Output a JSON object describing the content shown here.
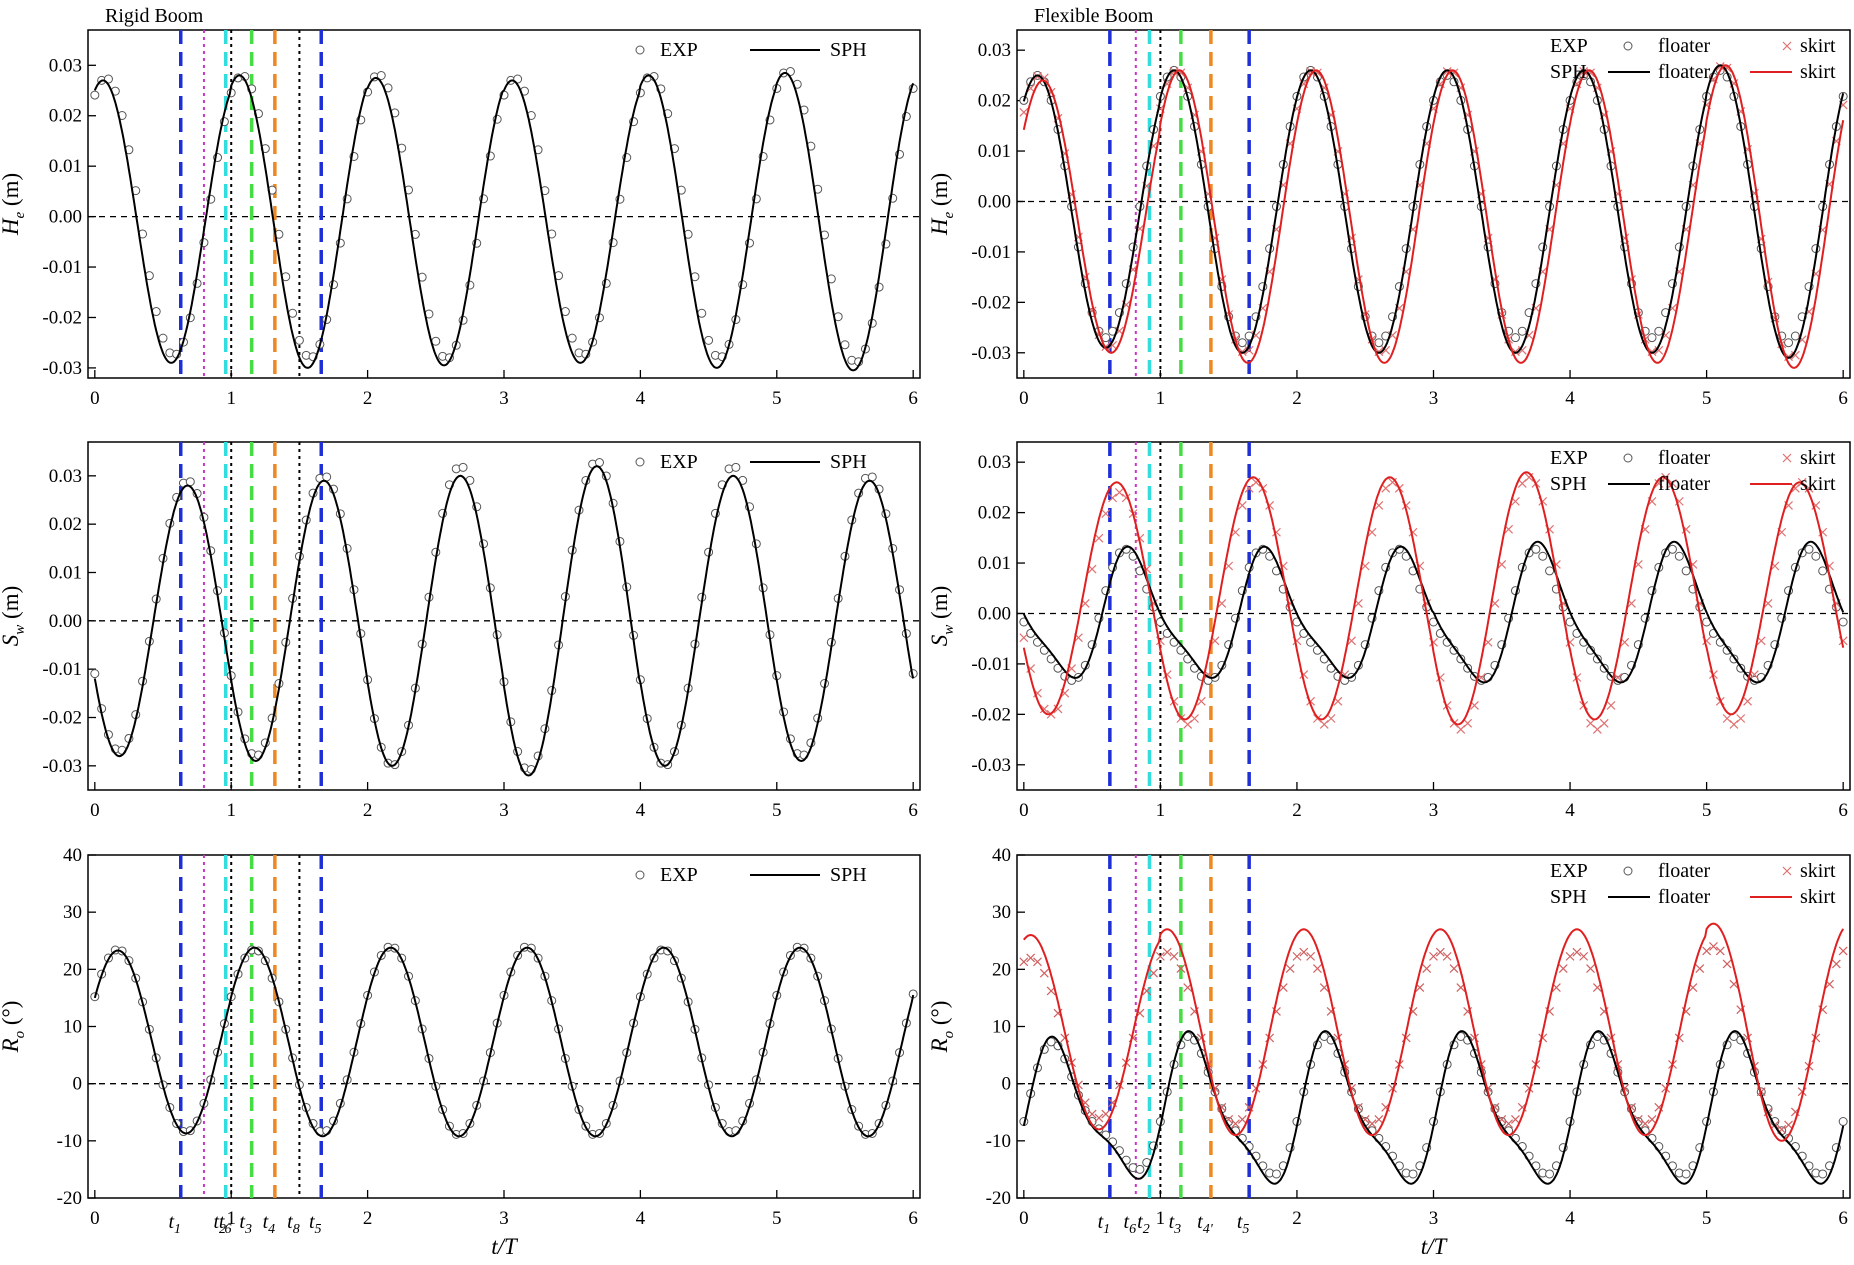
{
  "chart_data": [
    {
      "type": "line",
      "panel": "rigid-he",
      "column_title": "Rigid Boom",
      "ylabel": "He (m)",
      "ylabel_main": "H",
      "ylabel_sub": "e",
      "ylabel_unit": " (m)",
      "xlabel": "",
      "xlim": [
        -0.05,
        6.05
      ],
      "ylim": [
        -0.032,
        0.037
      ],
      "xticks": [
        0,
        1,
        2,
        3,
        4,
        5,
        6
      ],
      "yticks": [
        -0.03,
        -0.02,
        -0.01,
        0.0,
        0.01,
        0.02,
        0.03
      ],
      "ytick_labels": [
        "-0.03",
        "-0.02",
        "-0.01",
        "0.00",
        "0.01",
        "0.02",
        "0.03"
      ],
      "legend": {
        "rows": [
          [
            "EXP",
            "SPH"
          ]
        ]
      },
      "series": [
        {
          "name": "EXP",
          "kind": "exp",
          "style": "circle",
          "color": "#555555",
          "model": {
            "type": "sin",
            "offset": 0,
            "phase": 0.08,
            "amps": [
              0.0275,
              0.028,
              0.0282,
              0.0275,
              0.028,
              0.029,
              0.029
            ]
          }
        },
        {
          "name": "SPH",
          "kind": "sph",
          "style": "solid",
          "color": "#000000",
          "model": {
            "type": "sin",
            "offset": -0.001,
            "phase": 0.06,
            "amps": [
              0.028,
              0.029,
              0.0285,
              0.028,
              0.029,
              0.0295,
              0.0295
            ]
          }
        }
      ]
    },
    {
      "type": "line",
      "panel": "flex-he",
      "column_title": "Flexible Boom",
      "ylabel": "He (m)",
      "ylabel_main": "H",
      "ylabel_sub": "e",
      "ylabel_unit": " (m)",
      "xlabel": "",
      "xlim": [
        -0.05,
        6.05
      ],
      "ylim": [
        -0.035,
        0.034
      ],
      "xticks": [
        0,
        1,
        2,
        3,
        4,
        5,
        6
      ],
      "yticks": [
        -0.03,
        -0.02,
        -0.01,
        0.0,
        0.01,
        0.02,
        0.03
      ],
      "ytick_labels": [
        "-0.03",
        "-0.02",
        "-0.01",
        "0.00",
        "0.01",
        "0.02",
        "0.03"
      ],
      "legend": {
        "rows": [
          [
            "EXP",
            "floater",
            "skirt"
          ],
          [
            "SPH",
            "floater",
            "skirt"
          ]
        ]
      },
      "series": [
        {
          "name": "floater",
          "kind": "exp",
          "style": "circle",
          "color": "#555555",
          "model": {
            "type": "sin",
            "offset": -0.001,
            "phase": 0.1,
            "amps": [
              0.026,
              0.027,
              0.027,
              0.026,
              0.026,
              0.027,
              0.027
            ]
          }
        },
        {
          "name": "skirt",
          "kind": "exp",
          "style": "cross",
          "color": "#e07070",
          "model": {
            "type": "sin",
            "offset": -0.002,
            "phase": 0.12,
            "amps": [
              0.027,
              0.028,
              0.028,
              0.028,
              0.028,
              0.029,
              0.029
            ]
          }
        },
        {
          "name": "floater",
          "kind": "sph",
          "style": "solid",
          "color": "#000000",
          "model": {
            "type": "sin",
            "offset": -0.002,
            "phase": 0.1,
            "amps": [
              0.027,
              0.028,
              0.028,
              0.028,
              0.028,
              0.029,
              0.029
            ]
          }
        },
        {
          "name": "skirt",
          "kind": "sph",
          "style": "solid",
          "color": "#e02020",
          "model": {
            "type": "sin",
            "offset": -0.003,
            "phase": 0.14,
            "amps": [
              0.027,
              0.029,
              0.029,
              0.029,
              0.029,
              0.03,
              0.03
            ]
          }
        }
      ]
    },
    {
      "type": "line",
      "panel": "rigid-sw",
      "ylabel": "Sw (m)",
      "ylabel_main": "S",
      "ylabel_sub": "w",
      "ylabel_unit": " (m)",
      "xlabel": "",
      "xlim": [
        -0.05,
        6.05
      ],
      "ylim": [
        -0.035,
        0.037
      ],
      "xticks": [
        0,
        1,
        2,
        3,
        4,
        5,
        6
      ],
      "yticks": [
        -0.03,
        -0.02,
        -0.01,
        0.0,
        0.01,
        0.02,
        0.03
      ],
      "ytick_labels": [
        "-0.03",
        "-0.02",
        "-0.01",
        "0.00",
        "0.01",
        "0.02",
        "0.03"
      ],
      "legend": {
        "rows": [
          [
            "EXP",
            "SPH"
          ]
        ]
      },
      "series": [
        {
          "name": "EXP",
          "kind": "exp",
          "style": "circle",
          "color": "#555555",
          "model": {
            "type": "sin",
            "offset": 0.001,
            "phase": 0.68,
            "amps": [
              0.028,
              0.029,
              0.031,
              0.032,
              0.031,
              0.029,
              0.028
            ]
          }
        },
        {
          "name": "SPH",
          "kind": "sph",
          "style": "solid",
          "color": "#000000",
          "model": {
            "type": "sin",
            "offset": 0,
            "phase": 0.68,
            "amps": [
              0.028,
              0.029,
              0.03,
              0.032,
              0.03,
              0.029,
              0.028
            ]
          }
        }
      ]
    },
    {
      "type": "line",
      "panel": "flex-sw",
      "ylabel": "Sw (m)",
      "ylabel_main": "S",
      "ylabel_sub": "w",
      "ylabel_unit": " (m)",
      "xlabel": "",
      "xlim": [
        -0.05,
        6.05
      ],
      "ylim": [
        -0.035,
        0.034
      ],
      "xticks": [
        0,
        1,
        2,
        3,
        4,
        5,
        6
      ],
      "yticks": [
        -0.03,
        -0.02,
        -0.01,
        0.0,
        0.01,
        0.02,
        0.03
      ],
      "ytick_labels": [
        "-0.03",
        "-0.02",
        "-0.01",
        "0.00",
        "0.01",
        "0.02",
        "0.03"
      ],
      "legend": {
        "rows": [
          [
            "EXP",
            "floater",
            "skirt"
          ],
          [
            "SPH",
            "floater",
            "skirt"
          ]
        ]
      },
      "series": [
        {
          "name": "floater",
          "kind": "exp",
          "style": "circle",
          "color": "#555555",
          "model": {
            "type": "sin",
            "offset": -0.0015,
            "phase": 0.78,
            "amps": [
              0.012,
              0.012,
              0.012,
              0.012,
              0.012,
              0.012,
              0.012
            ],
            "h2": 0.003
          }
        },
        {
          "name": "skirt",
          "kind": "exp",
          "style": "cross",
          "color": "#e07070",
          "model": {
            "type": "sin",
            "offset": 0.002,
            "phase": 0.7,
            "amps": [
              0.022,
              0.024,
              0.024,
              0.025,
              0.025,
              0.024,
              0.024
            ]
          }
        },
        {
          "name": "floater",
          "kind": "sph",
          "style": "solid",
          "color": "#000000",
          "model": {
            "type": "sin",
            "offset": -0.001,
            "phase": 0.8,
            "amps": [
              0.012,
              0.012,
              0.012,
              0.013,
              0.013,
              0.013,
              0.013
            ],
            "h2": 0.003
          }
        },
        {
          "name": "skirt",
          "kind": "sph",
          "style": "solid",
          "color": "#e02020",
          "model": {
            "type": "sin",
            "offset": 0.003,
            "phase": 0.68,
            "amps": [
              0.023,
              0.024,
              0.024,
              0.025,
              0.024,
              0.023,
              0.023
            ]
          }
        }
      ]
    },
    {
      "type": "line",
      "panel": "rigid-ro",
      "ylabel": "Ro (°)",
      "ylabel_main": "R",
      "ylabel_sub": "o",
      "ylabel_unit": " (°)",
      "xlabel": "t/T",
      "xlim": [
        -0.05,
        6.05
      ],
      "ylim": [
        -20,
        40
      ],
      "xticks": [
        0,
        1,
        2,
        3,
        4,
        5,
        6
      ],
      "yticks": [
        -20,
        -10,
        0,
        10,
        20,
        30,
        40
      ],
      "ytick_labels": [
        "-20",
        "-10",
        "0",
        "10",
        "20",
        "30",
        "40"
      ],
      "legend": {
        "rows": [
          [
            "EXP",
            "SPH"
          ]
        ]
      },
      "series": [
        {
          "name": "EXP",
          "kind": "exp",
          "style": "circle",
          "color": "#555555",
          "model": {
            "type": "sin",
            "offset": 7.5,
            "phase": 0.17,
            "amps": [
              16,
              16,
              16.5,
              16.5,
              16,
              16.5,
              17
            ]
          }
        },
        {
          "name": "SPH",
          "kind": "sph",
          "style": "solid",
          "color": "#000000",
          "model": {
            "type": "sin",
            "offset": 7.3,
            "phase": 0.17,
            "amps": [
              16,
              16.5,
              16.5,
              16.5,
              16.5,
              16.5,
              17
            ]
          }
        }
      ]
    },
    {
      "type": "line",
      "panel": "flex-ro",
      "ylabel": "Ro (°)",
      "ylabel_main": "R",
      "ylabel_sub": "o",
      "ylabel_unit": " (°)",
      "xlabel": "t/T",
      "xlim": [
        -0.05,
        6.05
      ],
      "ylim": [
        -20,
        40
      ],
      "xticks": [
        0,
        1,
        2,
        3,
        4,
        5,
        6
      ],
      "yticks": [
        -20,
        -10,
        0,
        10,
        20,
        30,
        40
      ],
      "ytick_labels": [
        "-20",
        "-10",
        "0",
        "10",
        "20",
        "30",
        "40"
      ],
      "legend": {
        "rows": [
          [
            "EXP",
            "floater",
            "skirt"
          ],
          [
            "SPH",
            "floater",
            "skirt"
          ]
        ]
      },
      "series": [
        {
          "name": "floater",
          "kind": "exp",
          "style": "circle",
          "color": "#555555",
          "model": {
            "type": "sin",
            "offset": -5,
            "phase": 0.25,
            "amps": [
              10,
              11,
              11,
              11,
              11,
              11,
              11
            ],
            "h2": 3,
            "f2": 2
          }
        },
        {
          "name": "skirt",
          "kind": "exp",
          "style": "cross",
          "color": "#d06060",
          "model": {
            "type": "sin",
            "offset": 8,
            "phase": 0.05,
            "amps": [
              14,
              15,
              15,
              15,
              15,
              16,
              16
            ]
          }
        },
        {
          "name": "floater",
          "kind": "sph",
          "style": "solid",
          "color": "#000000",
          "model": {
            "type": "sin",
            "offset": -5.5,
            "phase": 0.25,
            "amps": [
              11,
              12,
              12,
              12,
              12,
              12,
              12
            ],
            "h2": 3.5,
            "f2": 2
          }
        },
        {
          "name": "skirt",
          "kind": "sph",
          "style": "solid",
          "color": "#e02020",
          "model": {
            "type": "sin",
            "offset": 9,
            "phase": 0.05,
            "amps": [
              17,
              18,
              18,
              18,
              18,
              19,
              19
            ]
          }
        }
      ]
    }
  ],
  "markers": {
    "rigid": [
      {
        "x": 0.63,
        "color": "#1f2fd6",
        "dash": "dashed",
        "label": "t1"
      },
      {
        "x": 0.8,
        "color": "#cc33cc",
        "dash": "dotted",
        "label": ""
      },
      {
        "x": 0.96,
        "color": "#33dddd",
        "dash": "dashed",
        "label": "t2"
      },
      {
        "x": 1.0,
        "color": "#000000",
        "dash": "dotted",
        "label": "t6"
      },
      {
        "x": 1.15,
        "color": "#44dd44",
        "dash": "dashed",
        "label": "t3"
      },
      {
        "x": 1.32,
        "color": "#ee8822",
        "dash": "dashed",
        "label": "t4"
      },
      {
        "x": 1.5,
        "color": "#000000",
        "dash": "dotted",
        "label": "t8"
      },
      {
        "x": 1.66,
        "color": "#1f2fd6",
        "dash": "dashed",
        "label": "t5"
      }
    ],
    "flexible": [
      {
        "x": 0.63,
        "color": "#1f2fd6",
        "dash": "dashed",
        "label": "t1"
      },
      {
        "x": 0.82,
        "color": "#cc33cc",
        "dash": "dotted",
        "label": "t6"
      },
      {
        "x": 0.92,
        "color": "#33dddd",
        "dash": "dashed",
        "label": "t2"
      },
      {
        "x": 1.0,
        "color": "#000000",
        "dash": "dotted",
        "label": ""
      },
      {
        "x": 1.15,
        "color": "#44dd44",
        "dash": "dashed",
        "label": "t3"
      },
      {
        "x": 1.37,
        "color": "#ee8822",
        "dash": "dashed",
        "label": "t4'"
      },
      {
        "x": 1.65,
        "color": "#1f2fd6",
        "dash": "dashed",
        "label": "t5"
      }
    ]
  }
}
